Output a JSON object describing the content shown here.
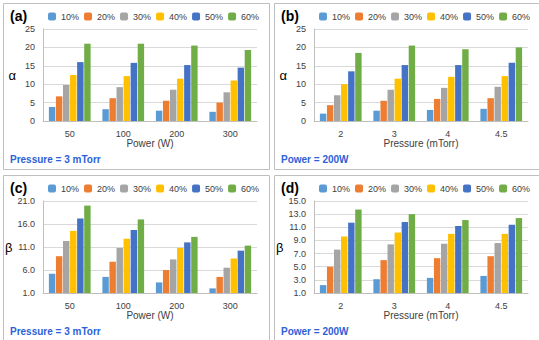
{
  "chart_data": [
    {
      "type": "bar",
      "title": "(a)",
      "x_label": "Power (W)",
      "y_label": "α",
      "annotation": "Pressure = 3 mTorr",
      "categories": [
        "50",
        "100",
        "200",
        "300"
      ],
      "series": [
        {
          "name": "10%",
          "color": "#5b9bd5",
          "values": [
            3.8,
            3.2,
            2.8,
            2.5
          ]
        },
        {
          "name": "20%",
          "color": "#ed7d31",
          "values": [
            6.7,
            6.2,
            5.5,
            5.0
          ]
        },
        {
          "name": "30%",
          "color": "#a5a5a5",
          "values": [
            9.8,
            9.2,
            8.5,
            7.8
          ]
        },
        {
          "name": "40%",
          "color": "#ffc000",
          "values": [
            12.5,
            12.2,
            11.5,
            11.0
          ]
        },
        {
          "name": "50%",
          "color": "#4472c4",
          "values": [
            16.0,
            15.8,
            15.2,
            14.5
          ]
        },
        {
          "name": "60%",
          "color": "#70ad47",
          "values": [
            21.0,
            21.0,
            20.5,
            19.3
          ]
        }
      ],
      "ylim": [
        0,
        25
      ],
      "yticks": [
        0,
        5,
        10,
        15,
        20,
        25
      ],
      "grid": true,
      "legend": "top"
    },
    {
      "type": "bar",
      "title": "(b)",
      "x_label": "Pressure (mTorr)",
      "y_label": "α",
      "annotation": "Power = 200W",
      "categories": [
        "2",
        "3",
        "4",
        "4.5"
      ],
      "series": [
        {
          "name": "10%",
          "color": "#5b9bd5",
          "values": [
            2.0,
            2.8,
            3.0,
            3.3
          ]
        },
        {
          "name": "20%",
          "color": "#ed7d31",
          "values": [
            4.3,
            5.5,
            6.0,
            6.2
          ]
        },
        {
          "name": "30%",
          "color": "#a5a5a5",
          "values": [
            7.0,
            8.5,
            9.0,
            9.3
          ]
        },
        {
          "name": "40%",
          "color": "#ffc000",
          "values": [
            10.0,
            11.5,
            12.0,
            12.2
          ]
        },
        {
          "name": "50%",
          "color": "#4472c4",
          "values": [
            13.5,
            15.2,
            15.2,
            15.8
          ]
        },
        {
          "name": "60%",
          "color": "#70ad47",
          "values": [
            18.5,
            20.5,
            19.5,
            20.0
          ]
        }
      ],
      "ylim": [
        0,
        25
      ],
      "yticks": [
        0,
        5,
        10,
        15,
        20,
        25
      ],
      "grid": true,
      "legend": "top"
    },
    {
      "type": "bar",
      "title": "(c)",
      "x_label": "Power (W)",
      "y_label": "β",
      "annotation": "Pressure = 3 mTorr",
      "categories": [
        "50",
        "100",
        "200",
        "300"
      ],
      "series": [
        {
          "name": "10%",
          "color": "#5b9bd5",
          "values": [
            5.2,
            4.5,
            3.3,
            2.0
          ]
        },
        {
          "name": "20%",
          "color": "#ed7d31",
          "values": [
            9.0,
            7.8,
            6.0,
            4.5
          ]
        },
        {
          "name": "30%",
          "color": "#a5a5a5",
          "values": [
            12.3,
            10.8,
            8.3,
            6.5
          ]
        },
        {
          "name": "40%",
          "color": "#ffc000",
          "values": [
            14.5,
            12.8,
            10.8,
            8.5
          ]
        },
        {
          "name": "50%",
          "color": "#4472c4",
          "values": [
            17.2,
            14.7,
            12.0,
            10.2
          ]
        },
        {
          "name": "60%",
          "color": "#70ad47",
          "values": [
            20.0,
            17.0,
            13.2,
            11.3
          ]
        }
      ],
      "ylim": [
        1,
        21
      ],
      "yticks": [
        {
          "value": 1,
          "label": "1.0"
        },
        {
          "value": 6,
          "label": "6.0"
        },
        {
          "value": 11,
          "label": "11.0"
        },
        {
          "value": 16,
          "label": "16.0"
        },
        {
          "value": 21,
          "label": "21.0"
        }
      ],
      "grid": true,
      "legend": "top"
    },
    {
      "type": "bar",
      "title": "(d)",
      "x_label": "Pressure (mTorr)",
      "y_label": "β",
      "annotation": "Power = 200W",
      "categories": [
        "2",
        "3",
        "4",
        "4.5"
      ],
      "series": [
        {
          "name": "10%",
          "color": "#5b9bd5",
          "values": [
            2.2,
            3.1,
            3.3,
            3.6
          ]
        },
        {
          "name": "20%",
          "color": "#ed7d31",
          "values": [
            5.0,
            6.0,
            6.3,
            6.6
          ]
        },
        {
          "name": "30%",
          "color": "#a5a5a5",
          "values": [
            7.6,
            8.4,
            8.5,
            8.6
          ]
        },
        {
          "name": "40%",
          "color": "#ffc000",
          "values": [
            9.6,
            10.2,
            10.0,
            10.0
          ]
        },
        {
          "name": "50%",
          "color": "#4472c4",
          "values": [
            11.7,
            11.8,
            11.2,
            11.4
          ]
        },
        {
          "name": "60%",
          "color": "#70ad47",
          "values": [
            13.7,
            13.0,
            12.1,
            12.4
          ]
        }
      ],
      "ylim": [
        1,
        15
      ],
      "yticks": [
        {
          "value": 1,
          "label": "1.0"
        },
        {
          "value": 3,
          "label": "3.0"
        },
        {
          "value": 5,
          "label": "5.0"
        },
        {
          "value": 7,
          "label": "7.0"
        },
        {
          "value": 9,
          "label": "9.0"
        },
        {
          "value": 11,
          "label": "11.0"
        },
        {
          "value": 13,
          "label": "13.0"
        },
        {
          "value": 15,
          "label": "15.0"
        }
      ],
      "grid": true,
      "legend": "top"
    }
  ]
}
